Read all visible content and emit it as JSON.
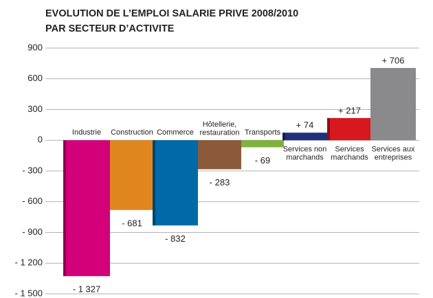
{
  "chart_data": {
    "type": "bar",
    "title": [
      "EVOLUTION DE L’EMPLOI SALARIE PRIVE 2008/2010",
      "PAR SECTEUR D’ACTIVITE"
    ],
    "categories": [
      "Industrie",
      "Construction",
      "Commerce",
      "Hôtellerie,\nrestauration",
      "Transports",
      "Services non\nmarchands",
      "Services\nmarchands",
      "Services aux\nentreprises"
    ],
    "values": [
      -1327,
      -681,
      -832,
      -283,
      -69,
      74,
      217,
      706
    ],
    "value_labels": [
      "- 1 327",
      "- 681",
      "- 832",
      "- 283",
      "- 69",
      "+ 74",
      "+ 217",
      "+ 706"
    ],
    "colors": [
      "#d4007a",
      "#e0861f",
      "#0069a8",
      "#8a5a3a",
      "#7fb23a",
      "#1f2f7e",
      "#d7181f",
      "#8a8a8c"
    ],
    "ylim": [
      -1500,
      900
    ],
    "yticks": [
      900,
      600,
      300,
      0,
      {
        "value": -300,
        "label": "- 300"
      },
      {
        "value": -600,
        "label": "- 600"
      },
      {
        "value": -900,
        "label": "- 900"
      },
      {
        "value": -1200,
        "label": "- 1 200"
      },
      {
        "value": -1500,
        "label": "- 1 500"
      }
    ],
    "grid": true
  }
}
